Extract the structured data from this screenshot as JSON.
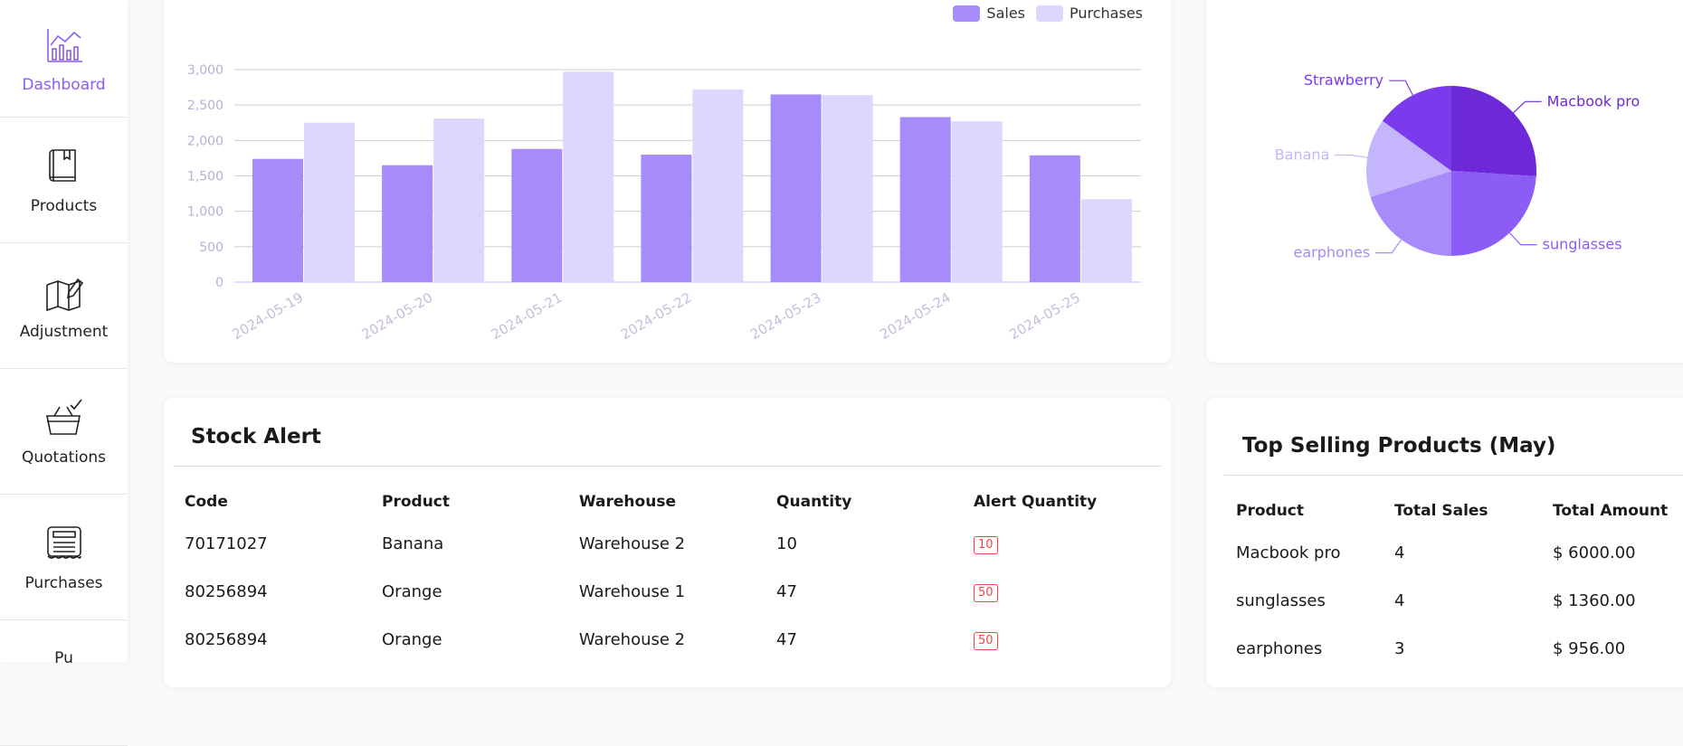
{
  "sidebar": {
    "items": [
      {
        "label": "Dashboard",
        "icon": "dashboard-chart-icon"
      },
      {
        "label": "Products",
        "icon": "book-icon"
      },
      {
        "label": "Adjustment",
        "icon": "map-edit-icon"
      },
      {
        "label": "Quotations",
        "icon": "basket-check-icon"
      },
      {
        "label": "Purchases",
        "icon": "receipt-icon"
      },
      {
        "label": "Pu",
        "icon": "partial-icon"
      }
    ]
  },
  "colors": {
    "accent": "#8b5cf6",
    "sales": "#a78bfa",
    "purchases": "#ddd6fe",
    "alert": "#ef4444"
  },
  "chart_data": [
    {
      "type": "bar",
      "categories": [
        "2024-05-19",
        "2024-05-20",
        "2024-05-21",
        "2024-05-22",
        "2024-05-23",
        "2024-05-24",
        "2024-05-25"
      ],
      "series": [
        {
          "name": "Sales",
          "values": [
            1740,
            1650,
            1880,
            1800,
            2650,
            2330,
            1790
          ]
        },
        {
          "name": "Purchases",
          "values": [
            2250,
            2310,
            2970,
            2720,
            2640,
            2270,
            1170
          ]
        }
      ],
      "yticks": [
        "3,000",
        "2,500",
        "2,000",
        "1,500",
        "1,000",
        "500",
        "0"
      ],
      "ylim": [
        0,
        3000
      ],
      "grid": true,
      "legend": "top-right"
    },
    {
      "type": "pie",
      "slices": [
        {
          "label": "Macbook pro",
          "value": 26,
          "color": "#6d28d9"
        },
        {
          "label": "sunglasses",
          "value": 24,
          "color": "#8b5cf6"
        },
        {
          "label": "earphones",
          "value": 20,
          "color": "#a78bfa"
        },
        {
          "label": "Banana",
          "value": 15,
          "color": "#c4b5fd"
        },
        {
          "label": "Strawberry",
          "value": 15,
          "color": "#7c3aed"
        }
      ]
    }
  ],
  "stock_alert": {
    "title": "Stock Alert",
    "columns": [
      "Code",
      "Product",
      "Warehouse",
      "Quantity",
      "Alert Quantity"
    ],
    "rows": [
      {
        "code": "70171027",
        "product": "Banana",
        "warehouse": "Warehouse 2",
        "quantity": "10",
        "alert": "10"
      },
      {
        "code": "80256894",
        "product": "Orange",
        "warehouse": "Warehouse 1",
        "quantity": "47",
        "alert": "50"
      },
      {
        "code": "80256894",
        "product": "Orange",
        "warehouse": "Warehouse 2",
        "quantity": "47",
        "alert": "50"
      }
    ]
  },
  "top_selling": {
    "title": "Top Selling Products (May)",
    "columns": [
      "Product",
      "Total Sales",
      "Total Amount"
    ],
    "rows": [
      {
        "product": "Macbook pro",
        "sales": "4",
        "amount": "$ 6000.00"
      },
      {
        "product": "sunglasses",
        "sales": "4",
        "amount": "$ 1360.00"
      },
      {
        "product": "earphones",
        "sales": "3",
        "amount": "$ 956.00"
      }
    ]
  }
}
